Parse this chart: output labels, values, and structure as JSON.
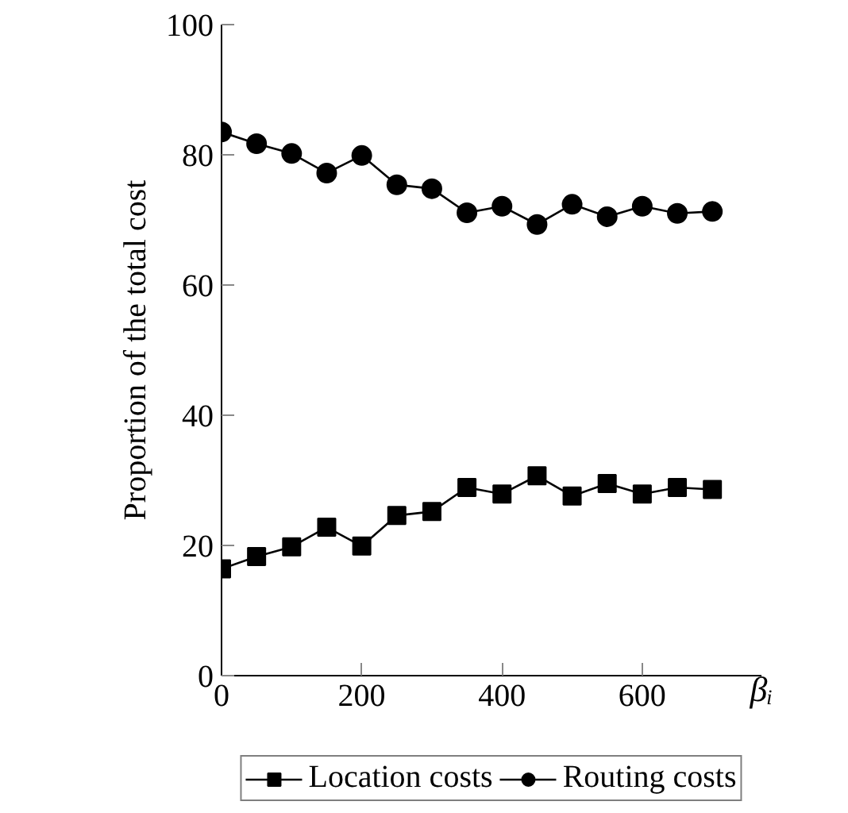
{
  "chart_data": {
    "type": "line",
    "xlabel": "βᵢ",
    "ylabel": "Proportion of the total cost",
    "x": [
      0,
      50,
      100,
      150,
      200,
      250,
      300,
      350,
      400,
      450,
      500,
      550,
      600,
      650,
      700
    ],
    "series": [
      {
        "name": "Location costs",
        "color": "#000000",
        "marker": "square",
        "values": [
          16.4,
          18.3,
          19.8,
          22.8,
          19.9,
          24.6,
          25.2,
          28.9,
          27.9,
          30.7,
          27.6,
          29.5,
          27.9,
          28.9,
          28.6
        ]
      },
      {
        "name": "Routing costs",
        "color": "#000000",
        "marker": "circle",
        "values": [
          83.5,
          81.7,
          80.2,
          77.2,
          79.9,
          75.4,
          74.8,
          71.1,
          72.1,
          69.3,
          72.4,
          70.5,
          72.1,
          71.0,
          71.3
        ]
      }
    ],
    "xlim": [
      0,
      770
    ],
    "ylim": [
      0,
      100
    ],
    "xticks": [
      0,
      200,
      400,
      600
    ],
    "yticks": [
      0,
      20,
      40,
      60,
      80,
      100
    ],
    "grid": false,
    "legend": "bottom",
    "line_style": "solid"
  }
}
